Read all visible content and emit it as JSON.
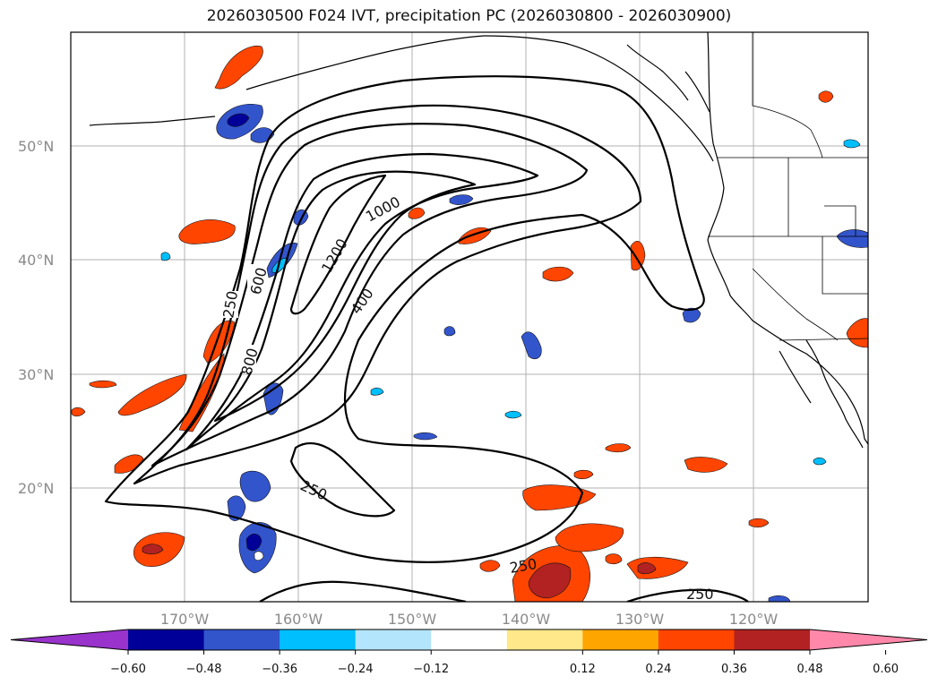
{
  "title": "2026030500 F024 IVT, precipitation PC (2026030800 - 2026030900)",
  "map": {
    "lat_labels": [
      "50°N",
      "40°N",
      "30°N",
      "20°N"
    ],
    "lon_labels": [
      "170°W",
      "160°W",
      "150°W",
      "140°W",
      "130°W",
      "120°W"
    ]
  },
  "ivt_contour_labels": [
    "250",
    "600",
    "800",
    "1000",
    "1200",
    "400",
    "250",
    "250",
    "250"
  ],
  "colorbar": {
    "tick_labels": [
      "-0.60",
      "-0.48",
      "-0.36",
      "-0.24",
      "-0.12",
      "0.12",
      "0.24",
      "0.36",
      "0.48",
      "0.60"
    ],
    "colors": [
      "#9933cc",
      "#000099",
      "#3355cc",
      "#00bfff",
      "#b3e5fc",
      "#ffffff",
      "#ffe88a",
      "#ffa500",
      "#ff4500",
      "#b22222",
      "#ff88aa"
    ]
  }
}
